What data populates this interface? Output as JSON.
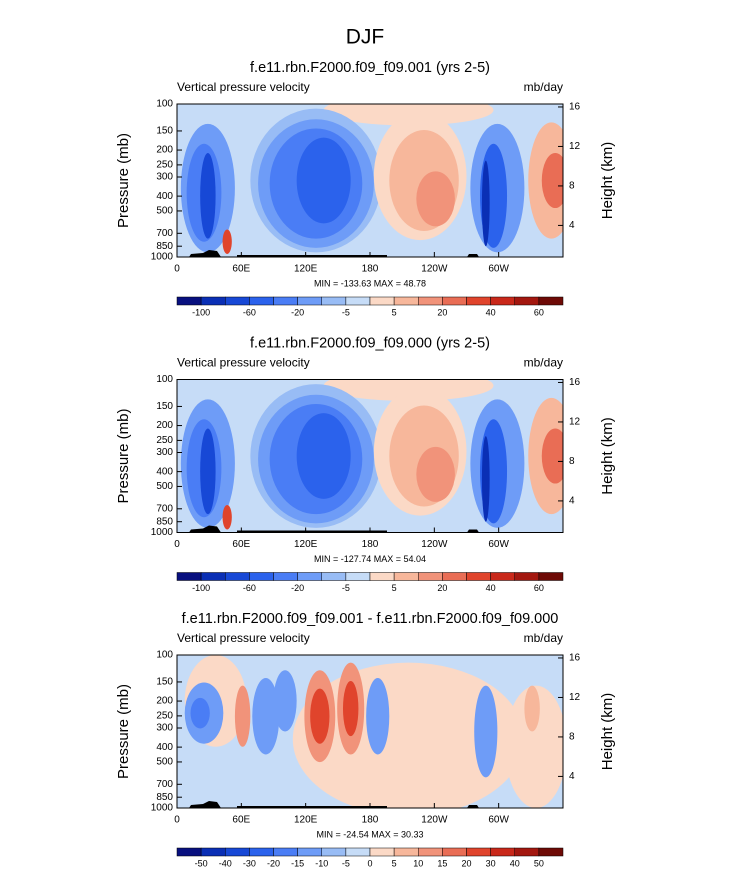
{
  "figure_title": "DJF",
  "chart_data": [
    {
      "type": "contour",
      "title": "f.e11.rbn.F2000.f09_f09.001 (yrs 2-5)",
      "left_label": "Vertical pressure velocity",
      "right_label": "mb/day",
      "ylabel": "Pressure (mb)",
      "y2label": "Height (km)",
      "annotation": "MIN = -133.63  MAX =  48.78",
      "xlim": [
        0,
        360
      ],
      "xticks": [
        0,
        {
          "value": 60,
          "label": "60E"
        },
        {
          "value": 120,
          "label": "120E"
        },
        180,
        {
          "value": 240,
          "label": "120W"
        },
        {
          "value": 300,
          "label": "60W"
        }
      ],
      "ylim": [
        1000,
        100
      ],
      "log": true,
      "yticks": [
        100,
        150,
        200,
        250,
        300,
        400,
        500,
        700,
        850,
        1000
      ],
      "y2lim": [
        0.8,
        16.3
      ],
      "y2ticks": [
        4,
        8,
        12,
        16
      ],
      "colorbar": {
        "colors": [
          "#08107f",
          "#0a2fb5",
          "#1748d6",
          "#2b62ec",
          "#4a7df5",
          "#6e9cf7",
          "#98bcf5",
          "#c6dcf7",
          "#fbd9c6",
          "#f7b79b",
          "#f1937a",
          "#e96d55",
          "#e0442c",
          "#c9281a",
          "#a3170f",
          "#6e0a06"
        ],
        "labels": [
          -100,
          -60,
          -20,
          -5,
          5,
          20,
          40,
          60
        ]
      }
    },
    {
      "type": "contour",
      "title": "f.e11.rbn.F2000.f09_f09.000 (yrs 2-5)",
      "left_label": "Vertical pressure velocity",
      "right_label": "mb/day",
      "ylabel": "Pressure (mb)",
      "y2label": "Height (km)",
      "annotation": "MIN = -127.74  MAX =  54.04",
      "xlim": [
        0,
        360
      ],
      "xticks": [
        0,
        {
          "value": 60,
          "label": "60E"
        },
        {
          "value": 120,
          "label": "120E"
        },
        180,
        {
          "value": 240,
          "label": "120W"
        },
        {
          "value": 300,
          "label": "60W"
        }
      ],
      "ylim": [
        1000,
        100
      ],
      "log": true,
      "yticks": [
        100,
        150,
        200,
        250,
        300,
        400,
        500,
        700,
        850,
        1000
      ],
      "y2lim": [
        0.8,
        16.3
      ],
      "y2ticks": [
        4,
        8,
        12,
        16
      ],
      "colorbar": {
        "colors": [
          "#08107f",
          "#0a2fb5",
          "#1748d6",
          "#2b62ec",
          "#4a7df5",
          "#6e9cf7",
          "#98bcf5",
          "#c6dcf7",
          "#fbd9c6",
          "#f7b79b",
          "#f1937a",
          "#e96d55",
          "#e0442c",
          "#c9281a",
          "#a3170f",
          "#6e0a06"
        ],
        "labels": [
          -100,
          -60,
          -20,
          -5,
          5,
          20,
          40,
          60
        ]
      }
    },
    {
      "type": "contour",
      "title": "f.e11.rbn.F2000.f09_f09.001 - f.e11.rbn.F2000.f09_f09.000",
      "left_label": "Vertical pressure velocity",
      "right_label": "mb/day",
      "ylabel": "Pressure (mb)",
      "y2label": "Height (km)",
      "annotation": "MIN = -24.54  MAX = 30.33",
      "xlim": [
        0,
        360
      ],
      "xticks": [
        0,
        {
          "value": 60,
          "label": "60E"
        },
        {
          "value": 120,
          "label": "120E"
        },
        180,
        {
          "value": 240,
          "label": "120W"
        },
        {
          "value": 300,
          "label": "60W"
        }
      ],
      "ylim": [
        1000,
        100
      ],
      "log": true,
      "yticks": [
        100,
        150,
        200,
        250,
        300,
        400,
        500,
        700,
        850,
        1000
      ],
      "y2lim": [
        0.8,
        16.3
      ],
      "y2ticks": [
        4,
        8,
        12,
        16
      ],
      "colorbar": {
        "colors": [
          "#08107f",
          "#0a2fb5",
          "#1748d6",
          "#2b62ec",
          "#4a7df5",
          "#6e9cf7",
          "#98bcf5",
          "#c6dcf7",
          "#fbd9c6",
          "#f7b79b",
          "#f1937a",
          "#e96d55",
          "#e0442c",
          "#c9281a",
          "#a3170f",
          "#6e0a06"
        ],
        "labels": [
          -50,
          -40,
          -30,
          -20,
          -15,
          -10,
          -5,
          0,
          5,
          10,
          15,
          20,
          30,
          40,
          50
        ]
      }
    }
  ]
}
